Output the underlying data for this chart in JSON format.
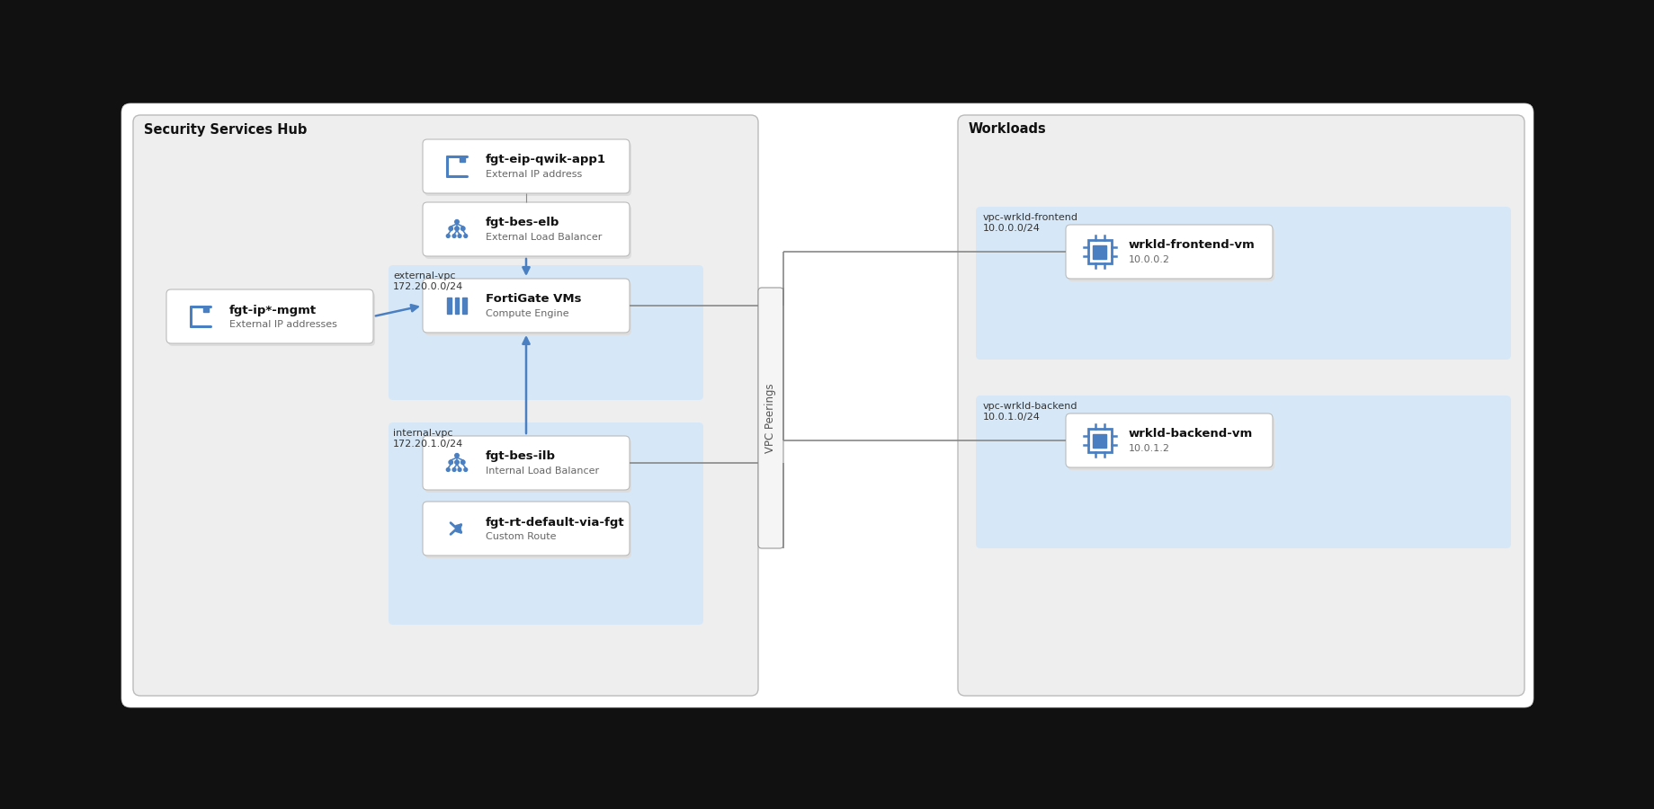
{
  "bg_color": "#111111",
  "inner_bg": "#ffffff",
  "hub_bg": "#eeeeee",
  "hub_border": "#bbbbbb",
  "hub_label": "Security Services Hub",
  "workloads_bg": "#eeeeee",
  "workloads_border": "#bbbbbb",
  "workloads_label": "Workloads",
  "ext_vpc_bg": "#d6e8f7",
  "int_vpc_bg": "#d6e8f7",
  "vpc_fe_bg": "#d6e8f7",
  "vpc_be_bg": "#d6e8f7",
  "arrow_color": "#4a7fc1",
  "box_bg": "#ffffff",
  "box_border": "#bbbbbb",
  "icon_blue": "#4a7fc1",
  "icon_blue_light": "#8ab4e0",
  "label_color": "#111111",
  "sublabel_color": "#666666",
  "vpc_label_color": "#333333",
  "line_color": "#888888",
  "vpcpeer_bg": "#f5f5f5",
  "vpcpeer_border": "#999999",
  "vpc_labels": {
    "external": {
      "line1": "external-vpc",
      "line2": "172.20.0.0/24"
    },
    "internal": {
      "line1": "internal-vpc",
      "line2": "172.20.1.0/24"
    },
    "frontend": {
      "line1": "vpc-wrkld-frontend",
      "line2": "10.0.0.0/24"
    },
    "backend": {
      "line1": "vpc-wrkld-backend",
      "line2": "10.0.1.0/24"
    }
  },
  "vpc_peerings_label": "VPC Peerings",
  "hub_label_text": "Security Services Hub",
  "workloads_label_text": "Workloads",
  "nodes": {
    "eip": {
      "label": "fgt-eip-qwik-app1",
      "sub": "External IP address",
      "icon": "ip"
    },
    "elb": {
      "label": "fgt-bes-elb",
      "sub": "External Load Balancer",
      "icon": "lb"
    },
    "fg": {
      "label": "FortiGate VMs",
      "sub": "Compute Engine",
      "icon": "compute"
    },
    "ilb": {
      "label": "fgt-bes-ilb",
      "sub": "Internal Load Balancer",
      "icon": "lb"
    },
    "rt": {
      "label": "fgt-rt-default-via-fgt",
      "sub": "Custom Route",
      "icon": "route"
    },
    "mgmt": {
      "label": "fgt-ip*-mgmt",
      "sub": "External IP addresses",
      "icon": "ip"
    },
    "wfe": {
      "label": "wrkld-frontend-vm",
      "sub": "10.0.0.2",
      "icon": "vm"
    },
    "wbe": {
      "label": "wrkld-backend-vm",
      "sub": "10.0.1.2",
      "icon": "vm"
    }
  }
}
